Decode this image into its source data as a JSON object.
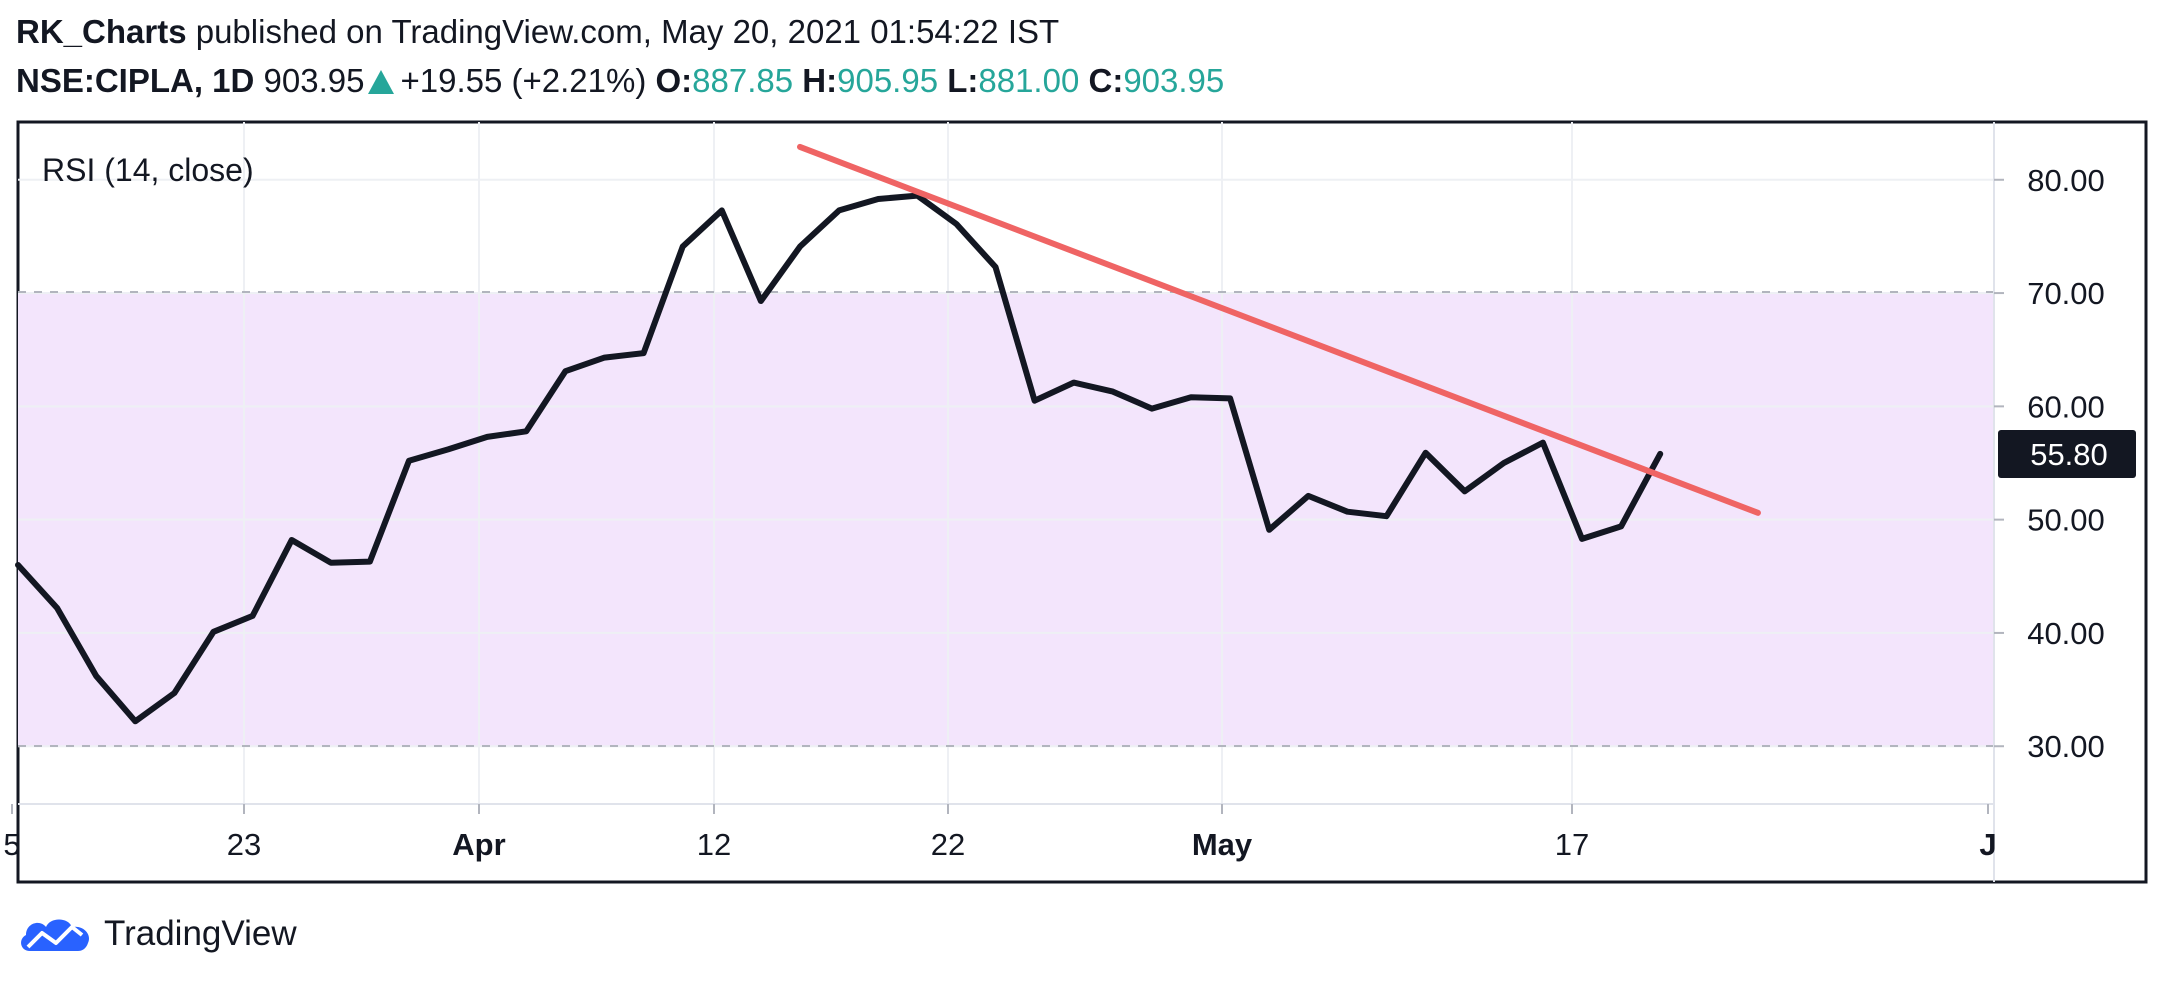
{
  "header": {
    "author": "RK_Charts",
    "published_text": "published on TradingView.com, May 20, 2021 01:54:22 IST",
    "symbol": "NSE:CIPLA, 1D",
    "price": "903.95",
    "change": "+19.55 (+2.21%)",
    "open_label": "O:",
    "open_value": "887.85",
    "high_label": "H:",
    "high_value": "905.95",
    "low_label": "L:",
    "low_value": "881.00",
    "close_label": "C:",
    "close_value": "903.95"
  },
  "footer": {
    "brand": "TradingView"
  },
  "colors": {
    "rsi_line": "#131722",
    "trendline": "#ef6464",
    "band_fill": "#f3e5fc",
    "band_border": "#b2b5be",
    "up": "#26a69a",
    "last_value_bg": "#131722",
    "logo": "#2962ff"
  },
  "chart_data": {
    "type": "line",
    "indicator_label": "RSI (14, close)",
    "y_ticks": [
      "80.00",
      "70.00",
      "60.00",
      "50.00",
      "40.00",
      "30.00"
    ],
    "x_ticks": [
      "5",
      "23",
      "Apr",
      "12",
      "22",
      "May",
      "17",
      "J"
    ],
    "ylim": [
      24.9,
      85.1
    ],
    "band": [
      30,
      70
    ],
    "last_value": "55.80",
    "grid": true,
    "series": [
      {
        "values": [
          46.0,
          42.2,
          36.2,
          32.2,
          34.7,
          40.1,
          41.5,
          48.2,
          46.2,
          46.3,
          55.2,
          56.2,
          57.3,
          57.8,
          63.1,
          64.3,
          64.7,
          74.1,
          77.3,
          69.3,
          74.1,
          77.3,
          78.3,
          78.6,
          76.1,
          72.3,
          60.5,
          62.1,
          61.3,
          59.8,
          60.8,
          60.7,
          49.1,
          52.1,
          50.7,
          50.3,
          55.9,
          52.5,
          55.0,
          56.8,
          48.3,
          49.4,
          55.8
        ]
      }
    ],
    "trendline": {
      "from": {
        "index": 20.0,
        "value": 82.9
      },
      "to": {
        "index": 44.5,
        "value": 50.6
      }
    }
  }
}
